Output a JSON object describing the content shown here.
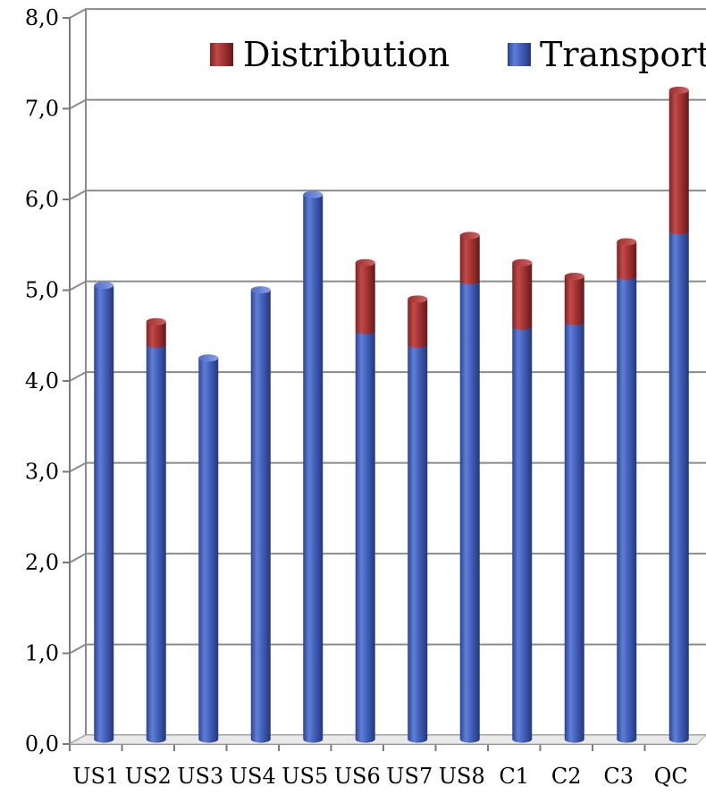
{
  "chart_data": {
    "type": "bar",
    "stacked": true,
    "title": "",
    "xlabel": "",
    "ylabel": "",
    "ylim": [
      0,
      8
    ],
    "y_ticks": [
      "0,0",
      "1,0",
      "2,0",
      "3,0",
      "4,0",
      "5,0",
      "6,0",
      "7,0",
      "8,0"
    ],
    "categories": [
      "US1",
      "US2",
      "US3",
      "US4",
      "US5",
      "US6",
      "US7",
      "US8",
      "C1",
      "C2",
      "C3",
      "QC"
    ],
    "series": [
      {
        "name": "Transport",
        "color": "#3f5bb5",
        "values": [
          5.0,
          4.35,
          4.2,
          4.95,
          6.0,
          4.5,
          4.35,
          5.05,
          4.55,
          4.6,
          5.1,
          5.6
        ]
      },
      {
        "name": "Distribution",
        "color": "#a83535",
        "values": [
          0,
          0.25,
          0,
          0,
          0,
          0.75,
          0.5,
          0.5,
          0.7,
          0.5,
          0.38,
          1.55
        ]
      }
    ],
    "legend": {
      "placement": "top-right",
      "order": [
        "Distribution",
        "Transport"
      ]
    },
    "grid": true,
    "style": "3d-cylinder"
  }
}
